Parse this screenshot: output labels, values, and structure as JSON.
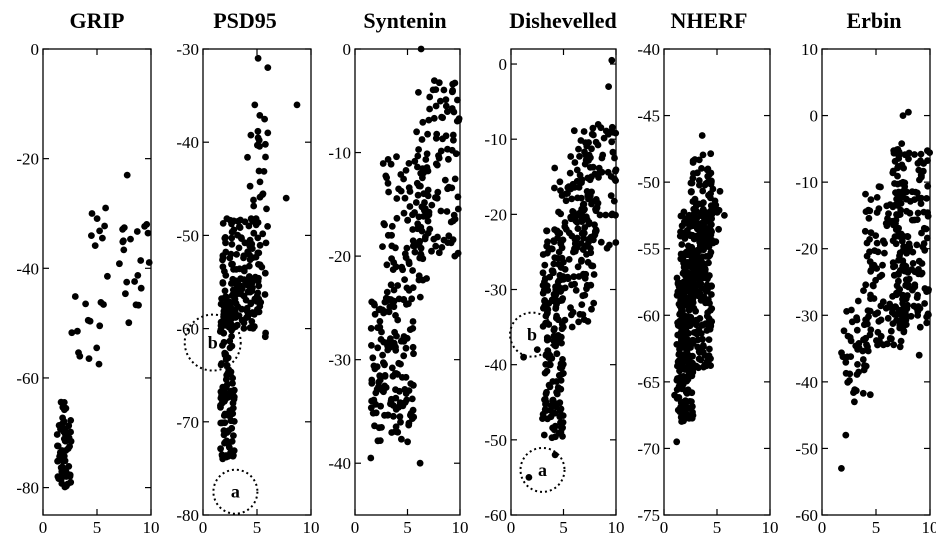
{
  "chart_data": [
    {
      "type": "scatter",
      "title": "GRIP",
      "xlim": [
        0,
        10
      ],
      "ylim": [
        -85,
        0
      ],
      "xticks": [
        0,
        5,
        10
      ],
      "yticks": [
        0,
        -20,
        -40,
        -60,
        -80
      ],
      "annotations": [],
      "clusters": [
        {
          "n": 60,
          "x": [
            1.2,
            2.6
          ],
          "y": [
            -80,
            -64
          ]
        },
        {
          "n": 14,
          "x": [
            2.5,
            5.8
          ],
          "y": [
            -58,
            -45
          ]
        },
        {
          "n": 8,
          "x": [
            4.2,
            6.2
          ],
          "y": [
            -45,
            -29
          ]
        },
        {
          "n": 20,
          "x": [
            7.0,
            10.0
          ],
          "y": [
            -50,
            -32
          ]
        }
      ],
      "points": [
        [
          7.8,
          -23
        ],
        [
          5.8,
          -29
        ],
        [
          9.6,
          -32
        ]
      ]
    },
    {
      "type": "scatter",
      "title": "PSD95",
      "xlim": [
        0,
        10
      ],
      "ylim": [
        -80,
        -30
      ],
      "xticks": [
        0,
        5,
        10
      ],
      "yticks": [
        -30,
        -40,
        -50,
        -60,
        -70,
        -80
      ],
      "annotations": [
        {
          "label": "b",
          "x": 0.9,
          "y": -61.5,
          "r": 28
        },
        {
          "label": "a",
          "x": 3.0,
          "y": -77.5,
          "r": 22
        }
      ],
      "clusters": [
        {
          "n": 120,
          "x": [
            1.6,
            2.9
          ],
          "y": [
            -74,
            -55
          ]
        },
        {
          "n": 140,
          "x": [
            1.8,
            5.3
          ],
          "y": [
            -60,
            -48
          ]
        },
        {
          "n": 30,
          "x": [
            4.0,
            6.0
          ],
          "y": [
            -61,
            -45
          ]
        },
        {
          "n": 15,
          "x": [
            4.0,
            5.8
          ],
          "y": [
            -45,
            -35
          ]
        }
      ],
      "points": [
        [
          6.0,
          -32
        ],
        [
          5.1,
          -31
        ],
        [
          8.7,
          -36
        ],
        [
          7.7,
          -46
        ],
        [
          6.0,
          -39
        ],
        [
          4.8,
          -36
        ]
      ]
    },
    {
      "type": "scatter",
      "title": "Syntenin",
      "xlim": [
        0,
        10
      ],
      "ylim": [
        -45,
        0
      ],
      "xticks": [
        0,
        5,
        10
      ],
      "yticks": [
        0,
        -10,
        -20,
        -30,
        -40
      ],
      "annotations": [],
      "clusters": [
        {
          "n": 140,
          "x": [
            1.5,
            5.6
          ],
          "y": [
            -38,
            -24
          ]
        },
        {
          "n": 90,
          "x": [
            2.6,
            7.0
          ],
          "y": [
            -25,
            -10
          ]
        },
        {
          "n": 100,
          "x": [
            5.5,
            10.0
          ],
          "y": [
            -20,
            -3
          ]
        }
      ],
      "points": [
        [
          6.3,
          0
        ],
        [
          6.2,
          -40
        ],
        [
          1.5,
          -39.5
        ],
        [
          9.5,
          -20
        ],
        [
          9.3,
          -4
        ]
      ]
    },
    {
      "type": "scatter",
      "title": "Dishevelled",
      "xlim": [
        0,
        10
      ],
      "ylim": [
        -60,
        2
      ],
      "xticks": [
        0,
        5,
        10
      ],
      "yticks": [
        0,
        -10,
        -20,
        -30,
        -40,
        -50,
        -60
      ],
      "annotations": [
        {
          "label": "b",
          "x": 2.0,
          "y": -36,
          "r": 22
        },
        {
          "label": "a",
          "x": 3.0,
          "y": -54,
          "r": 22
        }
      ],
      "clusters": [
        {
          "n": 150,
          "x": [
            3.0,
            5.0
          ],
          "y": [
            -50,
            -22
          ]
        },
        {
          "n": 120,
          "x": [
            4.0,
            8.0
          ],
          "y": [
            -35,
            -12
          ]
        },
        {
          "n": 100,
          "x": [
            6.0,
            10.0
          ],
          "y": [
            -25,
            -8
          ]
        }
      ],
      "points": [
        [
          9.6,
          0.5
        ],
        [
          9.3,
          -3
        ],
        [
          1.2,
          -39
        ],
        [
          1.7,
          -55
        ],
        [
          2.5,
          -38
        ],
        [
          4.2,
          -52
        ]
      ]
    },
    {
      "type": "scatter",
      "title": "NHERF",
      "xlim": [
        0,
        10
      ],
      "ylim": [
        -75,
        -40
      ],
      "xticks": [
        0,
        5,
        10
      ],
      "yticks": [
        -40,
        -45,
        -50,
        -55,
        -60,
        -65,
        -70,
        -75
      ],
      "annotations": [],
      "clusters": [
        {
          "n": 170,
          "x": [
            1.2,
            2.8
          ],
          "y": [
            -68,
            -57
          ]
        },
        {
          "n": 260,
          "x": [
            1.5,
            4.5
          ],
          "y": [
            -64,
            -52
          ]
        },
        {
          "n": 100,
          "x": [
            2.5,
            4.5
          ],
          "y": [
            -58,
            -47
          ]
        },
        {
          "n": 20,
          "x": [
            4.0,
            5.5
          ],
          "y": [
            -55,
            -50
          ]
        }
      ],
      "points": [
        [
          1.2,
          -69.5
        ],
        [
          3.6,
          -46.5
        ],
        [
          5.7,
          -52.5
        ],
        [
          1.0,
          -66
        ]
      ]
    },
    {
      "type": "scatter",
      "title": "Erbin",
      "xlim": [
        0,
        10
      ],
      "ylim": [
        -60,
        10
      ],
      "xticks": [
        0,
        5,
        10
      ],
      "yticks": [
        10,
        0,
        -10,
        -20,
        -30,
        -40,
        -50,
        -60
      ],
      "annotations": [],
      "clusters": [
        {
          "n": 50,
          "x": [
            1.8,
            4.5
          ],
          "y": [
            -42,
            -26
          ]
        },
        {
          "n": 140,
          "x": [
            4.0,
            8.0
          ],
          "y": [
            -35,
            -10
          ]
        },
        {
          "n": 140,
          "x": [
            6.5,
            10.0
          ],
          "y": [
            -32,
            -4
          ]
        }
      ],
      "points": [
        [
          1.8,
          -53
        ],
        [
          2.2,
          -48
        ],
        [
          8.0,
          0.5
        ],
        [
          7.5,
          0
        ],
        [
          3.0,
          -43
        ],
        [
          9.0,
          -36
        ]
      ]
    }
  ]
}
